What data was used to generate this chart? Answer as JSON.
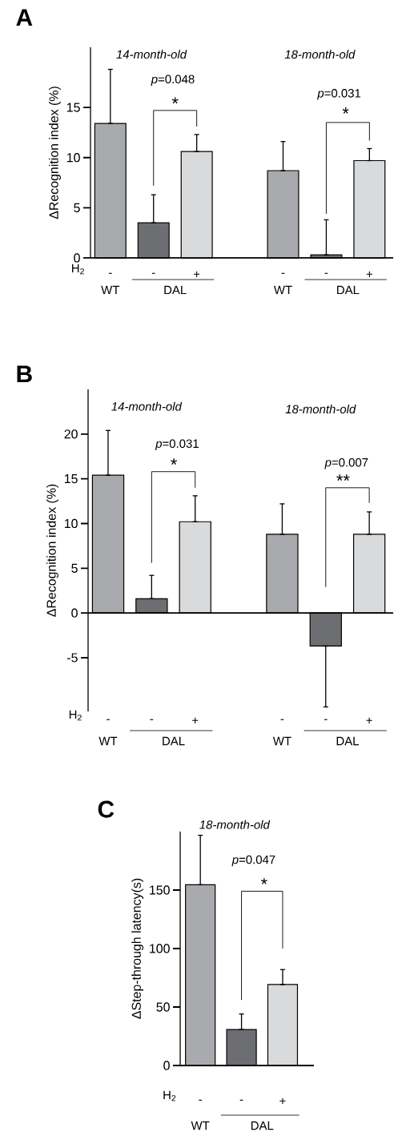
{
  "chart_data": [
    {
      "type": "bar",
      "title": "A",
      "ylabel": "ΔRecognition index (%)",
      "categories": [
        "-",
        "-",
        "+",
        null,
        "-",
        "-",
        "+"
      ],
      "values": [
        13.4,
        3.5,
        10.6,
        null,
        8.7,
        0.3,
        9.7
      ],
      "colors": [
        "#a9aaad",
        "#6d6e71",
        "#d9dadc",
        null,
        "#a9aaad",
        "#6d6e71",
        "#d9dadc"
      ],
      "errors": [
        [
          13.4,
          18.8
        ],
        [
          3.5,
          6.3
        ],
        [
          10.6,
          12.3
        ],
        null,
        [
          8.7,
          11.6
        ],
        [
          0.3,
          3.8
        ],
        [
          9.7,
          10.9
        ]
      ],
      "ylim": [
        0,
        21
      ],
      "yticks": [
        0,
        5,
        10,
        15
      ],
      "annotations": [
        "14-month-old",
        "18-month-old",
        "*p*=0.048",
        "*",
        "*p*=0.031",
        "*",
        "H$_{2}$",
        "WT",
        "DAL",
        "WT",
        "DAL"
      ]
    },
    {
      "type": "bar",
      "title": "B",
      "ylabel": "ΔRecognition index (%)",
      "categories": [
        "-",
        "-",
        "+",
        null,
        "-",
        "-",
        "+"
      ],
      "values": [
        15.4,
        1.6,
        10.2,
        null,
        8.8,
        -3.7,
        8.8
      ],
      "colors": [
        "#a9aaad",
        "#6d6e71",
        "#d9dadc",
        null,
        "#a9aaad",
        "#6d6e71",
        "#d9dadc"
      ],
      "errors": [
        [
          15.4,
          20.4
        ],
        [
          1.6,
          4.2
        ],
        [
          10.2,
          13.1
        ],
        null,
        [
          8.8,
          12.2
        ],
        [
          -10.5,
          -3.7
        ],
        [
          8.8,
          11.3
        ]
      ],
      "ylim": [
        -11,
        25
      ],
      "yticks": [
        -5,
        0,
        5,
        10,
        15,
        20
      ],
      "annotations": [
        "14-month-old",
        "18-month-old",
        "*p*=0.031",
        "*",
        "*p*=0.007",
        "**",
        "H$_{2}$",
        "WT",
        "DAL",
        "WT",
        "DAL"
      ]
    },
    {
      "type": "bar",
      "title": "C",
      "ylabel": "ΔStep-through latency(s)",
      "categories": [
        "-",
        "-",
        "+"
      ],
      "values": [
        154.5,
        30.8,
        69.2
      ],
      "colors": [
        "#a9aaad",
        "#6d6e71",
        "#d9dadc"
      ],
      "errors": [
        [
          154.5,
          196.8
        ],
        [
          30.8,
          44
        ],
        [
          69.2,
          82
        ]
      ],
      "ylim": [
        0,
        200
      ],
      "yticks": [
        0,
        50,
        100,
        150
      ],
      "annotations": [
        "18-month-old",
        "*p*=0.047",
        "*",
        "H$_{2}$",
        "WT",
        "DAL"
      ]
    }
  ]
}
